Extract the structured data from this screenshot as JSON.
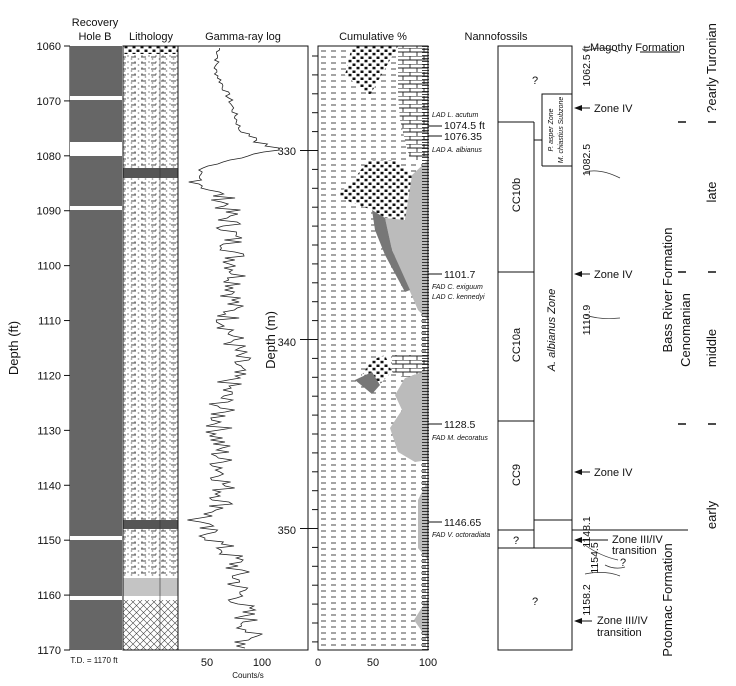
{
  "headers": {
    "recovery": [
      "Recovery",
      "Hole B"
    ],
    "lithology": "Lithology",
    "gamma": "Gamma-ray log",
    "cumulative": "Cumulative %",
    "nannofossils": "Nannofossils"
  },
  "depth_ft_axis": {
    "label": "Depth (ft)",
    "ticks": [
      "1060",
      "1070",
      "1080",
      "1090",
      "1100",
      "1110",
      "1120",
      "1130",
      "1140",
      "1150",
      "1160",
      "1170"
    ]
  },
  "depth_m_axis": {
    "label": "Depth (m)",
    "ticks": [
      "330",
      "340",
      "350"
    ]
  },
  "td_note": "T.D. = 1170 ft",
  "gamma_axis": {
    "ticks": [
      "50",
      "100"
    ],
    "unit": "Counts/s"
  },
  "cumulative_axis": {
    "ticks": [
      "0",
      "50",
      "100"
    ]
  },
  "events": [
    {
      "depth": "",
      "label": "LAD L. acutum"
    },
    {
      "depth": "1074.5 ft",
      "label": ""
    },
    {
      "depth": "1076.35",
      "label": ""
    },
    {
      "depth": "",
      "label": "LAD A. albianus"
    },
    {
      "depth": "1101.7",
      "label": "FAD C. exiguum"
    },
    {
      "depth": "",
      "label": "LAD C. kennedyi"
    },
    {
      "depth": "1128.5",
      "label": "FAD M. decoratus"
    },
    {
      "depth": "1146.65",
      "label": "FAD V. octoradiata"
    }
  ],
  "zones": {
    "cc": [
      "CC10b",
      "CC10a",
      "CC9",
      "?",
      "?"
    ],
    "albianus_zone": "A. albianus Zone",
    "subzone": [
      "P. asper Zone",
      "M. chiastius Subzone"
    ],
    "q_top": "?",
    "upper_question": "?"
  },
  "right_depths": [
    "1062.5 ft",
    "1082.5",
    "1110.9",
    "1148.1",
    "1154.5",
    "1158.2"
  ],
  "pollen": [
    "Magothy Formation",
    "Zone IV",
    "Zone IV",
    "Zone IV",
    "Zone III/IV",
    "transition",
    "?",
    "Zone III/IV",
    "transition"
  ],
  "formations": {
    "bass_river": "Bass River Formation",
    "potomac": "Potomac Formation",
    "cenomanian": "Cenomanian",
    "turonian": "?early Turonian",
    "late": "late",
    "middle": "middle",
    "early": "early"
  },
  "colors": {
    "core": "#666666",
    "gap": "#ffffff",
    "grey_fill": "#bbbbbb",
    "dark_fill": "#777777"
  }
}
